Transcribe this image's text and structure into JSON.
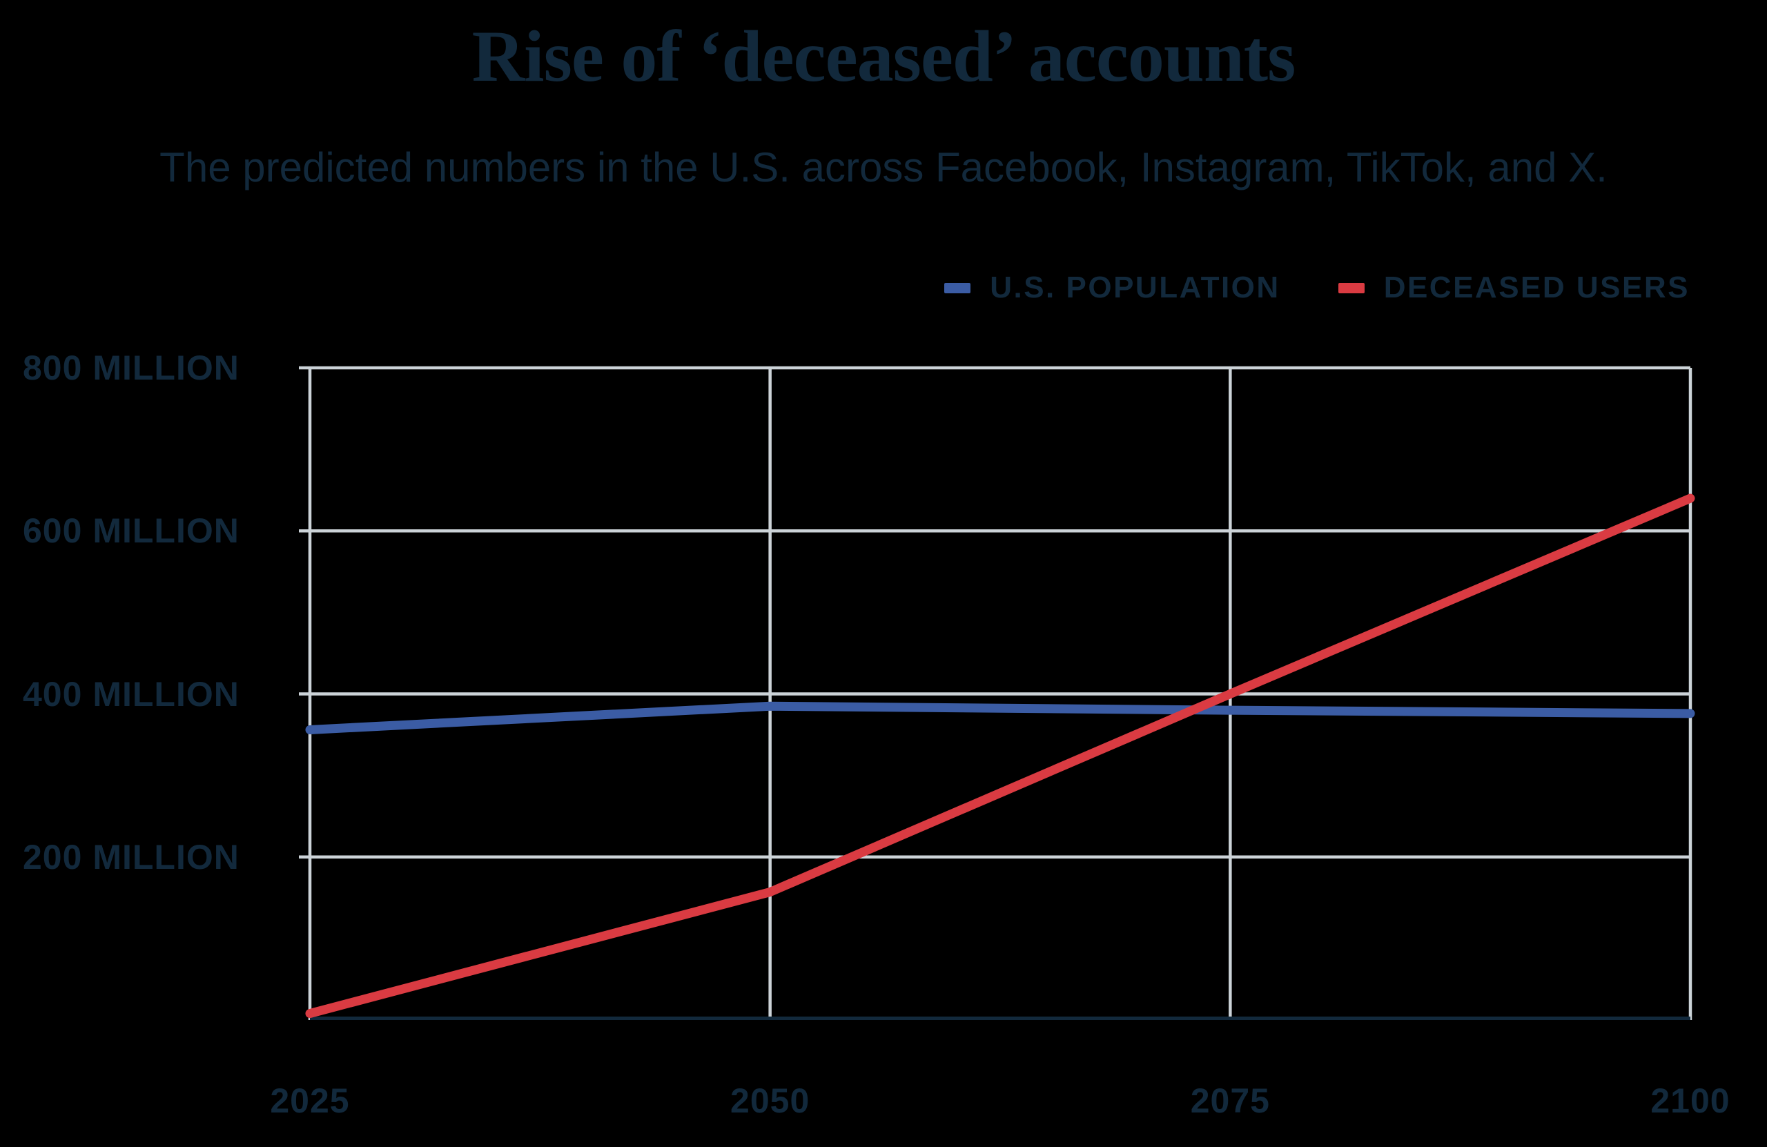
{
  "chart_data": {
    "type": "line",
    "title": "Rise of ‘deceased’ accounts",
    "subtitle": "The predicted numbers in the U.S. across Facebook, Instagram, TikTok, and X.",
    "x": [
      2025,
      2050,
      2075,
      2100
    ],
    "x_tick_labels": [
      "2025",
      "2050",
      "2075",
      "2100"
    ],
    "y_ticks": [
      800,
      600,
      400,
      200
    ],
    "y_tick_labels": [
      "800 MILLION",
      "600 MILLION",
      "400 MILLION",
      "200 MILLION"
    ],
    "ylim": [
      0,
      800
    ],
    "y_unit": "million accounts",
    "grid": true,
    "legend_position": "top-right",
    "series": [
      {
        "name": "U.S. POPULATION",
        "slug": "us-population",
        "color": "#3b5ca4",
        "values": [
          356,
          385,
          380,
          376
        ]
      },
      {
        "name": "DECEASED USERS",
        "slug": "deceased-users",
        "color": "#da3b42",
        "values": [
          8,
          157,
          400,
          640
        ]
      }
    ]
  },
  "colors": {
    "background": "#000000",
    "text": "#12293c",
    "gridline": "#ccd3d8",
    "axis": "#12293c"
  }
}
